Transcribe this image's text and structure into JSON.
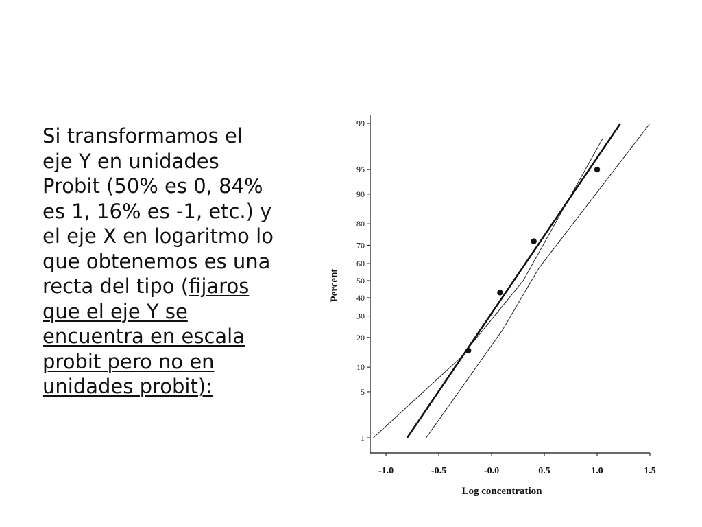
{
  "slide": {
    "lines": [
      {
        "pre": "Si transformamos el",
        "u": ""
      },
      {
        "pre": "eje Y en unidades",
        "u": ""
      },
      {
        "pre": "Probit (50% es 0, 84%",
        "u": ""
      },
      {
        "pre": "es 1, 16% es -1, etc.) y",
        "u": ""
      },
      {
        "pre": "el eje X en logaritmo lo",
        "u": ""
      },
      {
        "pre": "que obtenemos es una",
        "u": ""
      },
      {
        "pre": "recta del tipo (",
        "u": "fijaros"
      },
      {
        "pre": "",
        "u": "que el eje Y se"
      },
      {
        "pre": "",
        "u": "encuentra en escala"
      },
      {
        "pre": "",
        "u": "probit pero no en"
      },
      {
        "pre": "",
        "u": "unidades probit):"
      }
    ]
  },
  "chart_data": {
    "type": "scatter",
    "xlabel": "Log concentration",
    "ylabel": "Percent",
    "y_scale": "probit",
    "xlim": [
      -1.15,
      1.5
    ],
    "ylim": [
      1,
      99
    ],
    "x_ticks": [
      "-1.0",
      "-0.5",
      "-0.0",
      "0.5",
      "1.0",
      "1.5"
    ],
    "x_tick_values": [
      -1.0,
      -0.5,
      0.0,
      0.5,
      1.0,
      1.5
    ],
    "y_ticks": [
      "99",
      "95",
      "90",
      "80",
      "70",
      "60",
      "50",
      "40",
      "30",
      "20",
      "10",
      "5",
      "1"
    ],
    "y_tick_values": [
      99,
      95,
      90,
      80,
      70,
      60,
      50,
      40,
      30,
      20,
      10,
      5,
      1
    ],
    "points": [
      {
        "x": -0.22,
        "y": 15
      },
      {
        "x": 0.08,
        "y": 43
      },
      {
        "x": 0.4,
        "y": 72
      },
      {
        "x": 1.0,
        "y": 95
      }
    ],
    "fit_line": {
      "x": [
        -0.8,
        1.22
      ],
      "y": [
        1,
        99
      ]
    },
    "confidence_bands": [
      {
        "name": "upper",
        "x": [
          -1.12,
          -0.3,
          0.3,
          1.05
        ],
        "y": [
          1,
          12.5,
          50,
          98.2
        ]
      },
      {
        "name": "lower",
        "x": [
          -0.62,
          0.1,
          0.45,
          1.5
        ],
        "y": [
          1,
          23,
          57.5,
          99
        ]
      }
    ],
    "grid": false,
    "legend": "none"
  }
}
